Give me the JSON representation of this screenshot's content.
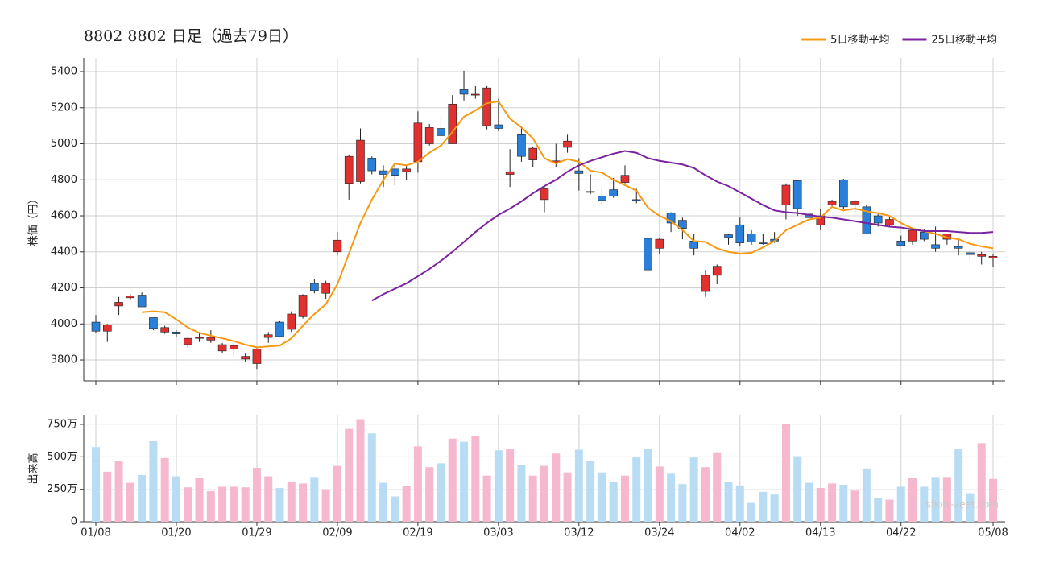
{
  "chart_data": [
    {
      "type": "candlestick",
      "title": "8802 8802  日足（過去79日）",
      "ylabel": "株価（円）",
      "ylim": [
        3684,
        5476
      ],
      "yticks": [
        3800,
        4000,
        4200,
        4400,
        4600,
        4800,
        5000,
        5200,
        5400
      ],
      "grid": true,
      "up_color": "#e03030",
      "down_color": "#2a7fd8",
      "legend": "top-right",
      "open": [
        4010,
        3960,
        4100,
        4145,
        4160,
        4035,
        3955,
        3955,
        3885,
        3920,
        3910,
        3850,
        3860,
        3805,
        3780,
        3925,
        4010,
        3970,
        4040,
        4225,
        4170,
        4400,
        4780,
        4790,
        4920,
        4850,
        4860,
        4845,
        4900,
        5000,
        5085,
        5000,
        5300,
        5270,
        5100,
        5105,
        4830,
        5050,
        4910,
        4690,
        4895,
        4980,
        4850,
        4735,
        4710,
        4745,
        4785,
        4690,
        4475,
        4420,
        4615,
        4575,
        4460,
        4180,
        4270,
        4495,
        4550,
        4500,
        4450,
        4470,
        4660,
        4795,
        4610,
        4550,
        4660,
        4800,
        4665,
        4650,
        4600,
        4550,
        4460,
        4460,
        4510,
        4440,
        4470,
        4430,
        4395,
        4375,
        4365
      ],
      "high": [
        4050,
        4000,
        4150,
        4165,
        4175,
        4035,
        3990,
        3965,
        3930,
        3955,
        3965,
        3895,
        3890,
        3840,
        3865,
        3955,
        4015,
        4070,
        4165,
        4250,
        4240,
        4510,
        4940,
        5085,
        4930,
        4880,
        4880,
        4880,
        5180,
        5110,
        5150,
        5270,
        5405,
        5320,
        5320,
        5250,
        4970,
        5100,
        4985,
        4760,
        5000,
        5050,
        4920,
        4830,
        4760,
        4810,
        4880,
        4750,
        4510,
        4480,
        4620,
        4590,
        4500,
        4300,
        4330,
        4500,
        4590,
        4520,
        4500,
        4510,
        4780,
        4800,
        4630,
        4640,
        4690,
        4805,
        4690,
        4660,
        4610,
        4600,
        4490,
        4530,
        4525,
        4540,
        4500,
        4470,
        4410,
        4400,
        4390
      ],
      "low": [
        3950,
        3900,
        4050,
        4130,
        4095,
        3965,
        3945,
        3930,
        3870,
        3900,
        3895,
        3840,
        3825,
        3790,
        3750,
        3895,
        3925,
        3955,
        4030,
        4170,
        4140,
        4380,
        4690,
        4780,
        4830,
        4760,
        4770,
        4800,
        4840,
        4990,
        5030,
        5000,
        5240,
        5250,
        5080,
        5070,
        4760,
        4900,
        4870,
        4620,
        4870,
        4950,
        4740,
        4720,
        4660,
        4700,
        4780,
        4670,
        4285,
        4390,
        4510,
        4470,
        4380,
        4150,
        4220,
        4440,
        4430,
        4440,
        4440,
        4450,
        4580,
        4600,
        4580,
        4520,
        4650,
        4640,
        4620,
        4500,
        4540,
        4540,
        4430,
        4440,
        4460,
        4400,
        4440,
        4380,
        4350,
        4330,
        4315
      ],
      "close": [
        3960,
        3995,
        4120,
        4155,
        4095,
        3975,
        3980,
        3945,
        3920,
        3925,
        3925,
        3885,
        3880,
        3820,
        3860,
        3940,
        3930,
        4055,
        4160,
        4185,
        4225,
        4465,
        4930,
        5020,
        4850,
        4830,
        4825,
        4860,
        5115,
        5090,
        5045,
        5220,
        5275,
        5275,
        5310,
        5085,
        4845,
        4930,
        4975,
        4750,
        4905,
        5015,
        4835,
        4730,
        4685,
        4710,
        4825,
        4685,
        4300,
        4470,
        4560,
        4530,
        4420,
        4270,
        4320,
        4480,
        4450,
        4455,
        4445,
        4460,
        4770,
        4640,
        4590,
        4600,
        4680,
        4650,
        4680,
        4500,
        4560,
        4580,
        4435,
        4520,
        4470,
        4420,
        4500,
        4420,
        4385,
        4385,
        4375
      ],
      "series": [
        {
          "name": "5日移動平均",
          "color": "#f59a12",
          "values": [
            null,
            null,
            null,
            null,
            4065,
            4070,
            4065,
            4025,
            3980,
            3950,
            3935,
            3920,
            3905,
            3885,
            3870,
            3875,
            3880,
            3920,
            3990,
            4055,
            4110,
            4220,
            4390,
            4560,
            4690,
            4800,
            4890,
            4880,
            4900,
            4950,
            4990,
            5065,
            5150,
            5185,
            5225,
            5235,
            5140,
            5090,
            5030,
            4920,
            4890,
            4915,
            4900,
            4850,
            4840,
            4800,
            4770,
            4740,
            4645,
            4600,
            4570,
            4520,
            4460,
            4455,
            4420,
            4400,
            4390,
            4395,
            4425,
            4460,
            4520,
            4550,
            4580,
            4590,
            4650,
            4630,
            4640,
            4625,
            4615,
            4600,
            4560,
            4530,
            4515,
            4500,
            4480,
            4470,
            4445,
            4430,
            4420
          ]
        },
        {
          "name": "25日移動平均",
          "color": "#7b22a0",
          "values": [
            null,
            null,
            null,
            null,
            null,
            null,
            null,
            null,
            null,
            null,
            null,
            null,
            null,
            null,
            null,
            null,
            null,
            null,
            null,
            null,
            null,
            null,
            null,
            null,
            4130,
            4165,
            4195,
            4225,
            4265,
            4305,
            4350,
            4400,
            4455,
            4510,
            4560,
            4605,
            4640,
            4680,
            4725,
            4765,
            4800,
            4845,
            4880,
            4905,
            4925,
            4945,
            4960,
            4950,
            4920,
            4905,
            4895,
            4885,
            4865,
            4825,
            4790,
            4765,
            4730,
            4695,
            4660,
            4630,
            4620,
            4615,
            4605,
            4595,
            4590,
            4580,
            4570,
            4560,
            4550,
            4540,
            4535,
            4525,
            4515,
            4515,
            4515,
            4510,
            4505,
            4505,
            4510
          ]
        }
      ]
    },
    {
      "type": "bar",
      "ylabel": "出来高",
      "watermark": "show-zeet.com",
      "ylim": [
        0,
        824
      ],
      "yticks": [
        0,
        {
          "value": 250,
          "label": "250万"
        },
        {
          "value": 500,
          "label": "500万"
        },
        {
          "value": 750,
          "label": "750万"
        }
      ],
      "grid": true,
      "up_color": "#f5b8cf",
      "down_color": "#b9dcf5",
      "categories": [
        "01/08",
        null,
        null,
        null,
        null,
        null,
        null,
        "01/20",
        null,
        null,
        null,
        null,
        null,
        null,
        "01/29",
        null,
        null,
        null,
        null,
        null,
        null,
        "02/09",
        null,
        null,
        null,
        null,
        null,
        null,
        "02/19",
        null,
        null,
        null,
        null,
        null,
        null,
        "03/03",
        null,
        null,
        null,
        null,
        null,
        null,
        "03/12",
        null,
        null,
        null,
        null,
        null,
        null,
        "03/24",
        null,
        null,
        null,
        null,
        null,
        null,
        "04/02",
        null,
        null,
        null,
        null,
        null,
        null,
        "04/13",
        null,
        null,
        null,
        null,
        null,
        null,
        "04/22",
        null,
        null,
        null,
        null,
        null,
        null,
        null,
        "05/08"
      ],
      "values": [
        575,
        385,
        465,
        300,
        360,
        620,
        490,
        350,
        265,
        340,
        235,
        270,
        270,
        265,
        415,
        350,
        260,
        305,
        295,
        345,
        250,
        430,
        715,
        790,
        680,
        300,
        195,
        275,
        580,
        420,
        450,
        640,
        615,
        660,
        355,
        550,
        560,
        440,
        355,
        430,
        525,
        380,
        555,
        465,
        380,
        305,
        355,
        495,
        560,
        425,
        370,
        290,
        495,
        420,
        535,
        305,
        280,
        145,
        230,
        210,
        750,
        505,
        300,
        260,
        295,
        285,
        240,
        410,
        180,
        170,
        270,
        340,
        270,
        345,
        345,
        560,
        220,
        605,
        330
      ]
    }
  ]
}
